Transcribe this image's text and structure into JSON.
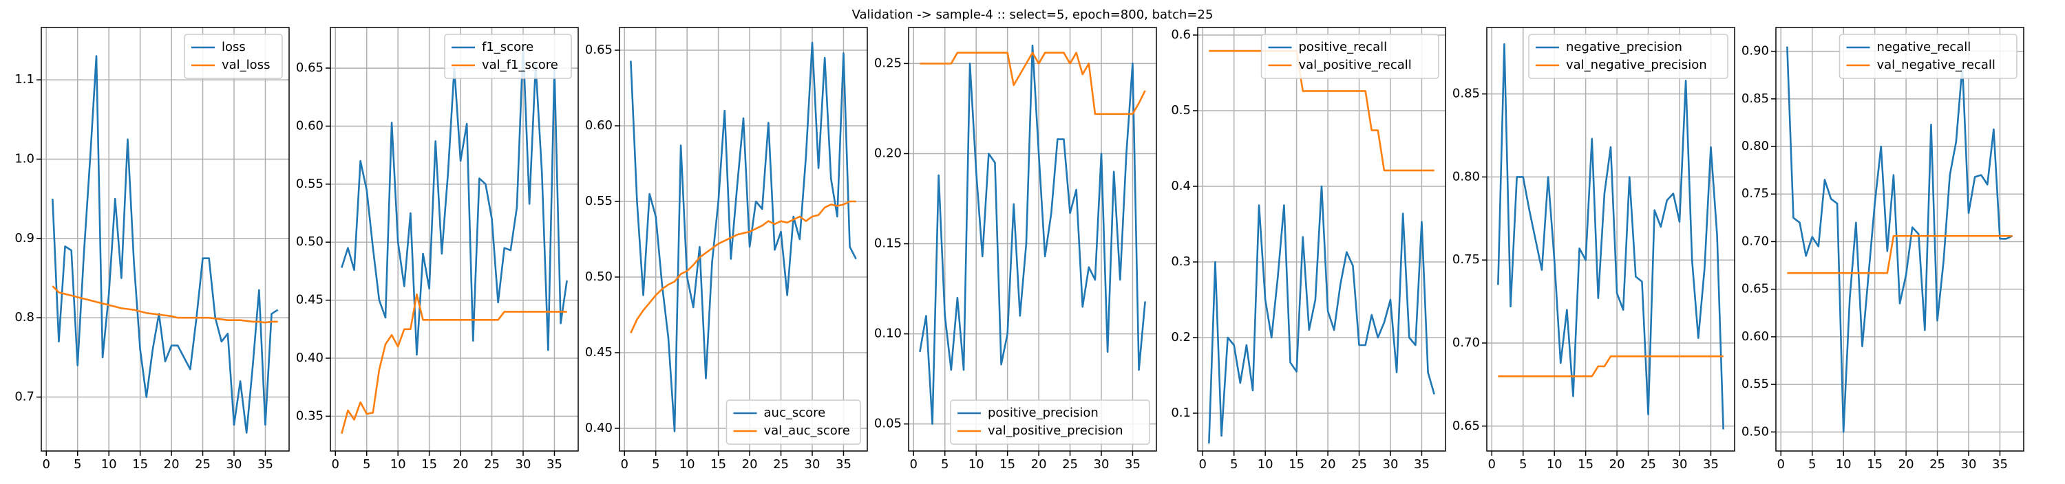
{
  "title": "Validation -> sample-4 :: select=5, epoch=800, batch=25",
  "chart_data": [
    {
      "type": "line",
      "legend": "upper right",
      "grid": true,
      "xlim": [
        -0.8,
        38.8
      ],
      "xticks": [
        0,
        5,
        10,
        15,
        20,
        25,
        30,
        35
      ],
      "ylim": [
        0.632,
        1.166
      ],
      "yticks": [
        0.7,
        0.8,
        0.9,
        {
          "value": 1,
          "label": "1.0"
        },
        1.1
      ],
      "x": [
        1,
        2,
        3,
        4,
        5,
        6,
        7,
        8,
        9,
        10,
        11,
        12,
        13,
        14,
        15,
        16,
        17,
        18,
        19,
        20,
        21,
        22,
        23,
        24,
        25,
        26,
        27,
        28,
        29,
        30,
        31,
        32,
        33,
        34,
        35,
        36,
        37
      ],
      "series": [
        {
          "name": "loss",
          "color": "#1f77b4",
          "values": [
            0.95,
            0.77,
            0.89,
            0.885,
            0.74,
            0.88,
            1.0,
            1.13,
            0.75,
            0.83,
            0.95,
            0.85,
            1.025,
            0.87,
            0.76,
            0.7,
            0.76,
            0.805,
            0.745,
            0.765,
            0.765,
            0.75,
            0.735,
            0.8,
            0.875,
            0.875,
            0.8,
            0.77,
            0.78,
            0.665,
            0.72,
            0.655,
            0.74,
            0.835,
            0.665,
            0.805,
            0.81
          ]
        },
        {
          "name": "val_loss",
          "color": "#ff7f0e",
          "values": [
            0.84,
            0.832,
            0.83,
            0.828,
            0.826,
            0.824,
            0.822,
            0.82,
            0.818,
            0.816,
            0.814,
            0.812,
            0.811,
            0.81,
            0.808,
            0.806,
            0.805,
            0.804,
            0.803,
            0.802,
            0.8,
            0.8,
            0.8,
            0.8,
            0.8,
            0.8,
            0.799,
            0.798,
            0.797,
            0.797,
            0.797,
            0.796,
            0.795,
            0.795,
            0.794,
            0.795,
            0.795
          ]
        }
      ]
    },
    {
      "type": "line",
      "legend": "upper right",
      "grid": true,
      "xlim": [
        -0.8,
        38.8
      ],
      "xticks": [
        0,
        5,
        10,
        15,
        20,
        25,
        30,
        35
      ],
      "ylim": [
        0.32,
        0.685
      ],
      "yticks": [
        0.35,
        {
          "value": 0.4,
          "label": "0.40"
        },
        0.45,
        {
          "value": 0.5,
          "label": "0.50"
        },
        0.55,
        {
          "value": 0.6,
          "label": "0.60"
        },
        0.65
      ],
      "x": [
        1,
        2,
        3,
        4,
        5,
        6,
        7,
        8,
        9,
        10,
        11,
        12,
        13,
        14,
        15,
        16,
        17,
        18,
        19,
        20,
        21,
        22,
        23,
        24,
        25,
        26,
        27,
        28,
        29,
        30,
        31,
        32,
        33,
        34,
        35,
        36,
        37
      ],
      "series": [
        {
          "name": "f1_score",
          "color": "#1f77b4",
          "values": [
            0.478,
            0.495,
            0.476,
            0.57,
            0.545,
            0.495,
            0.45,
            0.435,
            0.603,
            0.5,
            0.462,
            0.525,
            0.403,
            0.49,
            0.46,
            0.587,
            0.49,
            0.56,
            0.65,
            0.57,
            0.602,
            0.415,
            0.555,
            0.55,
            0.52,
            0.448,
            0.495,
            0.493,
            0.53,
            0.67,
            0.533,
            0.653,
            0.56,
            0.407,
            0.65,
            0.43,
            0.467
          ]
        },
        {
          "name": "val_f1_score",
          "color": "#ff7f0e",
          "values": [
            0.335,
            0.355,
            0.347,
            0.362,
            0.352,
            0.353,
            0.39,
            0.412,
            0.42,
            0.41,
            0.425,
            0.425,
            0.455,
            0.433,
            0.433,
            0.433,
            0.433,
            0.433,
            0.433,
            0.433,
            0.433,
            0.433,
            0.433,
            0.433,
            0.433,
            0.433,
            0.44,
            0.44,
            0.44,
            0.44,
            0.44,
            0.44,
            0.44,
            0.44,
            0.44,
            0.44,
            0.44
          ]
        }
      ]
    },
    {
      "type": "line",
      "legend": "lower right",
      "grid": true,
      "xlim": [
        -0.8,
        38.8
      ],
      "xticks": [
        0,
        5,
        10,
        15,
        20,
        25,
        30,
        35
      ],
      "ylim": [
        0.385,
        0.665
      ],
      "yticks": [
        {
          "value": 0.4,
          "label": "0.40"
        },
        0.45,
        {
          "value": 0.5,
          "label": "0.50"
        },
        0.55,
        {
          "value": 0.6,
          "label": "0.60"
        },
        0.65
      ],
      "x": [
        1,
        2,
        3,
        4,
        5,
        6,
        7,
        8,
        9,
        10,
        11,
        12,
        13,
        14,
        15,
        16,
        17,
        18,
        19,
        20,
        21,
        22,
        23,
        24,
        25,
        26,
        27,
        28,
        29,
        30,
        31,
        32,
        33,
        34,
        35,
        36,
        37
      ],
      "series": [
        {
          "name": "auc_score",
          "color": "#1f77b4",
          "values": [
            0.643,
            0.55,
            0.488,
            0.555,
            0.54,
            0.495,
            0.46,
            0.398,
            0.587,
            0.5,
            0.48,
            0.52,
            0.433,
            0.51,
            0.55,
            0.61,
            0.512,
            0.56,
            0.605,
            0.52,
            0.55,
            0.545,
            0.602,
            0.518,
            0.53,
            0.488,
            0.54,
            0.525,
            0.58,
            0.655,
            0.572,
            0.645,
            0.565,
            0.54,
            0.648,
            0.52,
            0.512
          ]
        },
        {
          "name": "val_auc_score",
          "color": "#ff7f0e",
          "values": [
            0.463,
            0.472,
            0.478,
            0.483,
            0.488,
            0.492,
            0.495,
            0.497,
            0.502,
            0.504,
            0.508,
            0.513,
            0.516,
            0.519,
            0.522,
            0.524,
            0.526,
            0.528,
            0.529,
            0.53,
            0.532,
            0.534,
            0.537,
            0.535,
            0.537,
            0.536,
            0.538,
            0.54,
            0.537,
            0.54,
            0.541,
            0.546,
            0.548,
            0.547,
            0.548,
            0.55,
            0.55
          ]
        }
      ]
    },
    {
      "type": "line",
      "legend": "lower right",
      "grid": true,
      "xlim": [
        -0.8,
        38.8
      ],
      "xticks": [
        0,
        5,
        10,
        15,
        20,
        25,
        30,
        35
      ],
      "ylim": [
        0.035,
        0.27
      ],
      "yticks": [
        0.05,
        {
          "value": 0.1,
          "label": "0.10"
        },
        0.15,
        {
          "value": 0.2,
          "label": "0.20"
        },
        0.25
      ],
      "x": [
        1,
        2,
        3,
        4,
        5,
        6,
        7,
        8,
        9,
        10,
        11,
        12,
        13,
        14,
        15,
        16,
        17,
        18,
        19,
        20,
        21,
        22,
        23,
        24,
        25,
        26,
        27,
        28,
        29,
        30,
        31,
        32,
        33,
        34,
        35,
        36,
        37
      ],
      "series": [
        {
          "name": "positive_precision",
          "color": "#1f77b4",
          "values": [
            0.09,
            0.11,
            0.05,
            0.188,
            0.11,
            0.08,
            0.12,
            0.08,
            0.25,
            0.19,
            0.143,
            0.2,
            0.195,
            0.083,
            0.1,
            0.172,
            0.11,
            0.15,
            0.26,
            0.2,
            0.143,
            0.167,
            0.208,
            0.208,
            0.167,
            0.18,
            0.115,
            0.137,
            0.13,
            0.2,
            0.09,
            0.19,
            0.13,
            0.2,
            0.25,
            0.08,
            0.118
          ]
        },
        {
          "name": "val_positive_precision",
          "color": "#ff7f0e",
          "values": [
            0.25,
            0.25,
            0.25,
            0.25,
            0.25,
            0.25,
            0.256,
            0.256,
            0.256,
            0.256,
            0.256,
            0.256,
            0.256,
            0.256,
            0.256,
            0.238,
            0.244,
            0.25,
            0.256,
            0.25,
            0.256,
            0.256,
            0.256,
            0.256,
            0.25,
            0.256,
            0.244,
            0.25,
            0.222,
            0.222,
            0.222,
            0.222,
            0.222,
            0.222,
            0.222,
            0.228,
            0.235
          ]
        }
      ]
    },
    {
      "type": "line",
      "legend": "upper right",
      "grid": true,
      "xlim": [
        -0.8,
        38.8
      ],
      "xticks": [
        0,
        5,
        10,
        15,
        20,
        25,
        30,
        35
      ],
      "ylim": [
        0.05,
        0.61
      ],
      "yticks": [
        0.1,
        0.2,
        0.3,
        0.4,
        0.5,
        0.6
      ],
      "x": [
        1,
        2,
        3,
        4,
        5,
        6,
        7,
        8,
        9,
        10,
        11,
        12,
        13,
        14,
        15,
        16,
        17,
        18,
        19,
        20,
        21,
        22,
        23,
        24,
        25,
        26,
        27,
        28,
        29,
        30,
        31,
        32,
        33,
        34,
        35,
        36,
        37
      ],
      "series": [
        {
          "name": "positive_recall",
          "color": "#1f77b4",
          "values": [
            0.06,
            0.3,
            0.07,
            0.2,
            0.19,
            0.14,
            0.19,
            0.13,
            0.375,
            0.25,
            0.2,
            0.28,
            0.375,
            0.167,
            0.155,
            0.333,
            0.21,
            0.25,
            0.4,
            0.235,
            0.21,
            0.27,
            0.313,
            0.295,
            0.19,
            0.19,
            0.23,
            0.2,
            0.22,
            0.25,
            0.154,
            0.364,
            0.2,
            0.19,
            0.353,
            0.154,
            0.125
          ]
        },
        {
          "name": "val_positive_recall",
          "color": "#ff7f0e",
          "values": [
            0.579,
            0.579,
            0.579,
            0.579,
            0.579,
            0.579,
            0.579,
            0.579,
            0.579,
            0.579,
            0.579,
            0.579,
            0.579,
            0.579,
            0.579,
            0.526,
            0.526,
            0.526,
            0.526,
            0.526,
            0.526,
            0.526,
            0.526,
            0.526,
            0.526,
            0.526,
            0.474,
            0.474,
            0.421,
            0.421,
            0.421,
            0.421,
            0.421,
            0.421,
            0.421,
            0.421,
            0.421
          ]
        }
      ]
    },
    {
      "type": "line",
      "legend": "upper right",
      "grid": true,
      "xlim": [
        -0.8,
        38.8
      ],
      "xticks": [
        0,
        5,
        10,
        15,
        20,
        25,
        30,
        35
      ],
      "ylim": [
        0.635,
        0.89
      ],
      "yticks": [
        0.65,
        {
          "value": 0.7,
          "label": "0.70"
        },
        0.75,
        {
          "value": 0.8,
          "label": "0.80"
        },
        0.85
      ],
      "x": [
        1,
        2,
        3,
        4,
        5,
        6,
        7,
        8,
        9,
        10,
        11,
        12,
        13,
        14,
        15,
        16,
        17,
        18,
        19,
        20,
        21,
        22,
        23,
        24,
        25,
        26,
        27,
        28,
        29,
        30,
        31,
        32,
        33,
        34,
        35,
        36,
        37
      ],
      "series": [
        {
          "name": "negative_precision",
          "color": "#1f77b4",
          "values": [
            0.735,
            0.88,
            0.722,
            0.8,
            0.8,
            0.78,
            0.762,
            0.744,
            0.8,
            0.75,
            0.688,
            0.72,
            0.668,
            0.757,
            0.75,
            0.823,
            0.727,
            0.79,
            0.818,
            0.73,
            0.72,
            0.8,
            0.74,
            0.737,
            0.657,
            0.78,
            0.77,
            0.786,
            0.79,
            0.773,
            0.858,
            0.75,
            0.703,
            0.745,
            0.818,
            0.765,
            0.648
          ]
        },
        {
          "name": "val_negative_precision",
          "color": "#ff7f0e",
          "values": [
            0.68,
            0.68,
            0.68,
            0.68,
            0.68,
            0.68,
            0.68,
            0.68,
            0.68,
            0.68,
            0.68,
            0.68,
            0.68,
            0.68,
            0.68,
            0.68,
            0.686,
            0.686,
            0.692,
            0.692,
            0.692,
            0.692,
            0.692,
            0.692,
            0.692,
            0.692,
            0.692,
            0.692,
            0.692,
            0.692,
            0.692,
            0.692,
            0.692,
            0.692,
            0.692,
            0.692,
            0.692
          ]
        }
      ]
    },
    {
      "type": "line",
      "legend": "upper right",
      "grid": true,
      "xlim": [
        -0.8,
        38.8
      ],
      "xticks": [
        0,
        5,
        10,
        15,
        20,
        25,
        30,
        35
      ],
      "ylim": [
        0.48,
        0.925
      ],
      "yticks": [
        {
          "value": 0.5,
          "label": "0.50"
        },
        0.55,
        {
          "value": 0.6,
          "label": "0.60"
        },
        0.65,
        {
          "value": 0.7,
          "label": "0.70"
        },
        0.75,
        {
          "value": 0.8,
          "label": "0.80"
        },
        0.85,
        {
          "value": 0.9,
          "label": "0.90"
        }
      ],
      "x": [
        1,
        2,
        3,
        4,
        5,
        6,
        7,
        8,
        9,
        10,
        11,
        12,
        13,
        14,
        15,
        16,
        17,
        18,
        19,
        20,
        21,
        22,
        23,
        24,
        25,
        26,
        27,
        28,
        29,
        30,
        31,
        32,
        33,
        34,
        35,
        36,
        37
      ],
      "series": [
        {
          "name": "negative_recall",
          "color": "#1f77b4",
          "values": [
            0.905,
            0.725,
            0.72,
            0.685,
            0.705,
            0.695,
            0.765,
            0.745,
            0.74,
            0.5,
            0.64,
            0.72,
            0.59,
            0.665,
            0.74,
            0.8,
            0.69,
            0.77,
            0.635,
            0.665,
            0.715,
            0.708,
            0.607,
            0.823,
            0.617,
            0.68,
            0.77,
            0.805,
            0.885,
            0.73,
            0.768,
            0.77,
            0.76,
            0.818,
            0.703,
            0.703,
            0.706
          ]
        },
        {
          "name": "val_negative_recall",
          "color": "#ff7f0e",
          "values": [
            0.667,
            0.667,
            0.667,
            0.667,
            0.667,
            0.667,
            0.667,
            0.667,
            0.667,
            0.667,
            0.667,
            0.667,
            0.667,
            0.667,
            0.667,
            0.667,
            0.667,
            0.706,
            0.706,
            0.706,
            0.706,
            0.706,
            0.706,
            0.706,
            0.706,
            0.706,
            0.706,
            0.706,
            0.706,
            0.706,
            0.706,
            0.706,
            0.706,
            0.706,
            0.706,
            0.706,
            0.706
          ]
        }
      ]
    }
  ]
}
